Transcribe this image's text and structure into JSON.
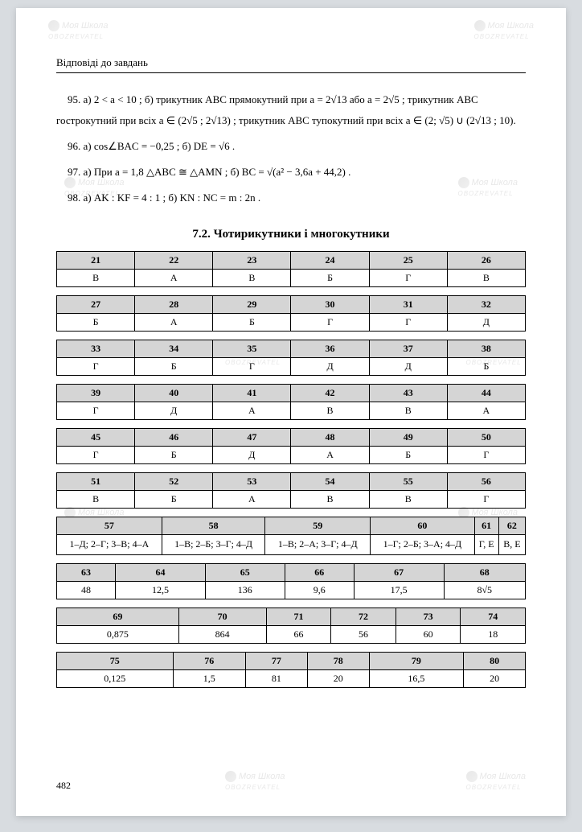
{
  "header": "Відповіді до завдань",
  "answers": {
    "p95": "95. а) 2 < a < 10 ; б) трикутник ABC прямокутний при a = 2√13 або a = 2√5 ; трикутник ABC гострокутний при всіх a ∈ (2√5 ; 2√13) ; трикутник ABC тупокутний при всіх a ∈ (2; √5) ∪ (2√13 ; 10).",
    "p96": "96. а) cos∠BAC = −0,25 ; б) DE = √6 .",
    "p97": "97. а) При a = 1,8 △ABC ≅ △AMN ; б) BC = √(a² − 3,6a + 44,2) .",
    "p98": "98. а) AK : KF = 4 : 1 ; б) KN : NC = m : 2n ."
  },
  "section_title": "7.2. Чотирикутники і многокутники",
  "tables": [
    {
      "headers": [
        "21",
        "22",
        "23",
        "24",
        "25",
        "26"
      ],
      "row": [
        "В",
        "А",
        "В",
        "Б",
        "Г",
        "В"
      ]
    },
    {
      "headers": [
        "27",
        "28",
        "29",
        "30",
        "31",
        "32"
      ],
      "row": [
        "Б",
        "А",
        "Б",
        "Г",
        "Г",
        "Д"
      ]
    },
    {
      "headers": [
        "33",
        "34",
        "35",
        "36",
        "37",
        "38"
      ],
      "row": [
        "Г",
        "Б",
        "Г",
        "Д",
        "Д",
        "Б"
      ]
    },
    {
      "headers": [
        "39",
        "40",
        "41",
        "42",
        "43",
        "44"
      ],
      "row": [
        "Г",
        "Д",
        "А",
        "В",
        "В",
        "А"
      ]
    },
    {
      "headers": [
        "45",
        "46",
        "47",
        "48",
        "49",
        "50"
      ],
      "row": [
        "Г",
        "Б",
        "Д",
        "А",
        "Б",
        "Г"
      ]
    },
    {
      "headers": [
        "51",
        "52",
        "53",
        "54",
        "55",
        "56"
      ],
      "row": [
        "В",
        "Б",
        "А",
        "В",
        "В",
        "Г"
      ]
    },
    {
      "headers": [
        "57",
        "58",
        "59",
        "60",
        "61",
        "62"
      ],
      "row": [
        "1–Д; 2–Г; 3–В; 4–А",
        "1–В; 2–Б; 3–Г; 4–Д",
        "1–В; 2–А; 3–Г; 4–Д",
        "1–Г; 2–Б; 3–А; 4–Д",
        "Г, Е",
        "В, Е"
      ]
    },
    {
      "headers": [
        "63",
        "64",
        "65",
        "66",
        "67",
        "68"
      ],
      "row": [
        "48",
        "12,5",
        "136",
        "9,6",
        "17,5",
        "8√5"
      ]
    },
    {
      "headers": [
        "69",
        "70",
        "71",
        "72",
        "73",
        "74"
      ],
      "row": [
        "0,875",
        "864",
        "66",
        "56",
        "60",
        "18"
      ]
    },
    {
      "headers": [
        "75",
        "76",
        "77",
        "78",
        "79",
        "80"
      ],
      "row": [
        "0,125",
        "1,5",
        "81",
        "20",
        "16,5",
        "20"
      ]
    }
  ],
  "page_number": "482",
  "watermark_text": "Моя Школа",
  "watermark_sub": "OBOZREVATEL",
  "colors": {
    "page_bg": "#ffffff",
    "outer_bg": "#d8dce0",
    "header_bg": "#d5d5d5",
    "watermark": "#e8e8e8",
    "text": "#000000"
  }
}
